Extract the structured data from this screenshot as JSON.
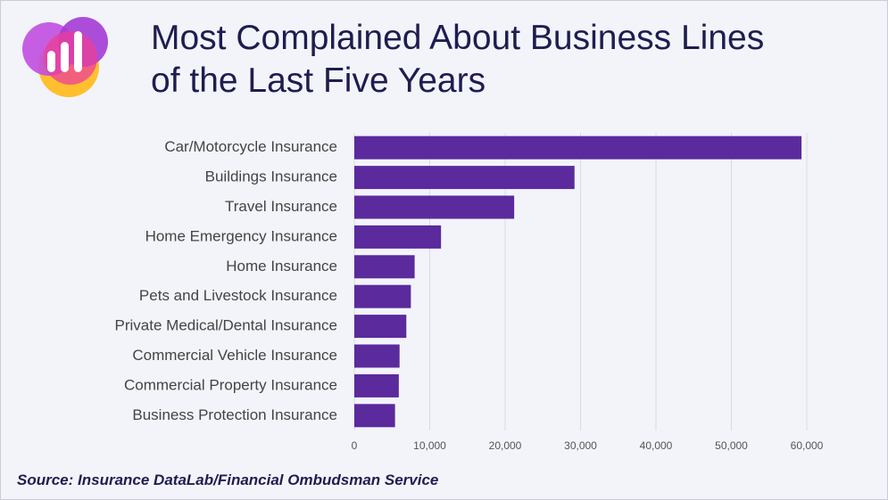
{
  "chart_data": {
    "type": "bar",
    "orientation": "horizontal",
    "title": "Most Complained About Business Lines of the Last Five Years",
    "source": "Source: Insurance DataLab/Financial Ombudsman Service",
    "categories": [
      "Car/Motorcycle Insurance",
      "Buildings Insurance",
      "Travel Insurance",
      "Home Emergency Insurance",
      "Home Insurance",
      "Pets and Livestock Insurance",
      "Private Medical/Dental Insurance",
      "Commercial Vehicle Insurance",
      "Commercial Property Insurance",
      "Business Protection Insurance"
    ],
    "values": [
      59300,
      29200,
      21200,
      11500,
      8000,
      7500,
      6900,
      6000,
      5900,
      5400
    ],
    "color": "#5b2a9c",
    "xlim": [
      0,
      60000
    ],
    "xticks": [
      0,
      {
        "value": 10000,
        "label": "10,000"
      },
      {
        "value": 20000,
        "label": "20,000"
      },
      {
        "value": 30000,
        "label": "30,000"
      },
      {
        "value": 40000,
        "label": "40,000"
      },
      {
        "value": 50000,
        "label": "50,000"
      },
      {
        "value": 60000,
        "label": "60,000"
      }
    ],
    "grid": true
  }
}
